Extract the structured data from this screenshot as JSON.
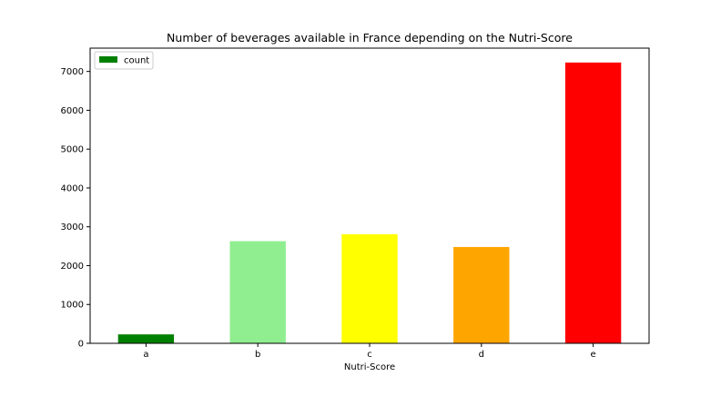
{
  "chart_data": {
    "type": "bar",
    "title": "Number of beverages available in France depending on the Nutri-Score",
    "xlabel": "Nutri-Score",
    "ylabel": "",
    "categories": [
      "a",
      "b",
      "c",
      "d",
      "e"
    ],
    "series": [
      {
        "name": "count",
        "values": [
          230,
          2630,
          2810,
          2480,
          7230
        ]
      }
    ],
    "bar_colors": [
      "#008000",
      "#90ee90",
      "#ffff00",
      "#ffa500",
      "#ff0000"
    ],
    "legend_color": "#008000",
    "ylim": [
      0,
      7600
    ],
    "yticks": [
      0,
      1000,
      2000,
      3000,
      4000,
      5000,
      6000,
      7000
    ],
    "grid": false,
    "legend_position": "top-left"
  }
}
